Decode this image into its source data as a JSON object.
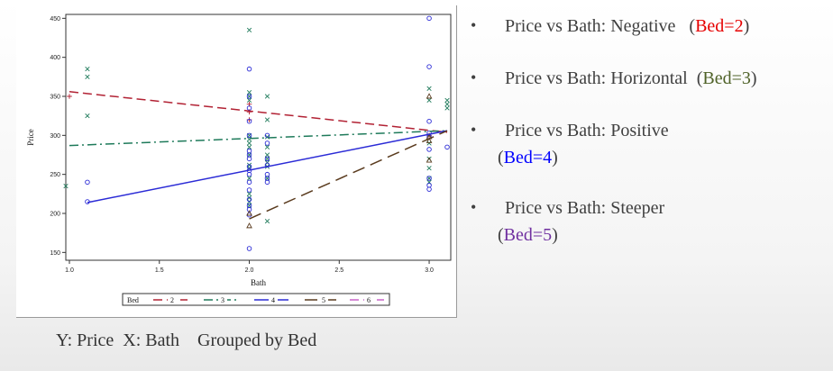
{
  "slide": {
    "caption": "Y: Price  X: Bath    Grouped by Bed",
    "bullets": [
      {
        "lead": "Price vs Bath: Negative",
        "open": "(",
        "group": "Bed=2",
        "close": ")"
      },
      {
        "lead": "Price vs Bath: Horizontal",
        "open": "(",
        "group": "Bed=3",
        "close": ")"
      },
      {
        "lead": "Price vs Bath: Positive",
        "open": "(",
        "group": "Bed=4",
        "close": ")"
      },
      {
        "lead": "Price vs Bath: Steeper",
        "open": "(",
        "group": "Bed=5",
        "close": ")"
      }
    ],
    "bullet_symbol": "•"
  },
  "chart_data": {
    "type": "scatter",
    "xlabel": "Bath",
    "ylabel": "Price",
    "xlim": [
      0.98,
      3.12
    ],
    "ylim": [
      140,
      455
    ],
    "xticks": [
      1.0,
      1.5,
      2.0,
      2.5,
      3.0
    ],
    "xtick_labels": [
      "1.0",
      "1.5",
      "2.0",
      "2.5",
      "3.0"
    ],
    "yticks": [
      150,
      200,
      250,
      300,
      350,
      400,
      450
    ],
    "ytick_labels": [
      "150",
      "200",
      "250",
      "300",
      "350",
      "400",
      "450"
    ],
    "grid": false,
    "legend": {
      "title": "Bed",
      "position": "bottom",
      "entries": [
        "2",
        "3",
        "4",
        "5",
        "6"
      ]
    },
    "series": [
      {
        "name": "2",
        "color": "#b22234",
        "dash": "10,5",
        "marker": "plus",
        "line": [
          [
            1.0,
            356
          ],
          [
            3.1,
            304
          ]
        ],
        "points": [
          [
            1.0,
            350
          ],
          [
            2.0,
            340
          ],
          [
            2.0,
            330
          ],
          [
            2.0,
            320
          ],
          [
            3.0,
            300
          ]
        ]
      },
      {
        "name": "3",
        "color": "#1e7a5a",
        "dash": "10,4,2,4",
        "marker": "x",
        "line": [
          [
            1.0,
            287
          ],
          [
            3.1,
            306
          ]
        ],
        "points": [
          [
            0.98,
            235
          ],
          [
            1.1,
            385
          ],
          [
            1.1,
            375
          ],
          [
            1.1,
            325
          ],
          [
            2.0,
            435
          ],
          [
            2.0,
            355
          ],
          [
            2.0,
            350
          ],
          [
            2.0,
            345
          ],
          [
            2.0,
            300
          ],
          [
            2.0,
            295
          ],
          [
            2.0,
            290
          ],
          [
            2.0,
            285
          ],
          [
            2.0,
            275
          ],
          [
            2.0,
            262
          ],
          [
            2.0,
            258
          ],
          [
            2.0,
            245
          ],
          [
            2.0,
            225
          ],
          [
            2.0,
            220
          ],
          [
            2.0,
            215
          ],
          [
            2.0,
            210
          ],
          [
            2.1,
            350
          ],
          [
            2.1,
            320
          ],
          [
            2.1,
            298
          ],
          [
            2.1,
            285
          ],
          [
            2.1,
            275
          ],
          [
            2.1,
            270
          ],
          [
            2.1,
            265
          ],
          [
            2.1,
            260
          ],
          [
            2.1,
            245
          ],
          [
            2.1,
            190
          ],
          [
            3.0,
            360
          ],
          [
            3.0,
            345
          ],
          [
            3.0,
            300
          ],
          [
            3.0,
            290
          ],
          [
            3.0,
            270
          ],
          [
            3.0,
            258
          ],
          [
            3.0,
            245
          ],
          [
            3.0,
            240
          ],
          [
            3.1,
            345
          ],
          [
            3.1,
            340
          ],
          [
            3.1,
            335
          ]
        ]
      },
      {
        "name": "4",
        "color": "#2b2bd6",
        "dash": "",
        "marker": "circle",
        "line": [
          [
            1.1,
            214
          ],
          [
            3.1,
            306
          ]
        ],
        "points": [
          [
            1.1,
            240
          ],
          [
            1.1,
            215
          ],
          [
            2.0,
            385
          ],
          [
            2.0,
            350
          ],
          [
            2.0,
            335
          ],
          [
            2.0,
            318
          ],
          [
            2.0,
            300
          ],
          [
            2.0,
            280
          ],
          [
            2.0,
            275
          ],
          [
            2.0,
            270
          ],
          [
            2.0,
            260
          ],
          [
            2.0,
            255
          ],
          [
            2.0,
            250
          ],
          [
            2.0,
            240
          ],
          [
            2.0,
            230
          ],
          [
            2.0,
            218
          ],
          [
            2.0,
            210
          ],
          [
            2.0,
            205
          ],
          [
            2.0,
            198
          ],
          [
            2.0,
            155
          ],
          [
            2.1,
            300
          ],
          [
            2.1,
            290
          ],
          [
            2.1,
            270
          ],
          [
            2.1,
            262
          ],
          [
            2.1,
            250
          ],
          [
            2.1,
            245
          ],
          [
            2.1,
            240
          ],
          [
            3.0,
            450
          ],
          [
            3.0,
            388
          ],
          [
            3.0,
            318
          ],
          [
            3.0,
            303
          ],
          [
            3.0,
            298
          ],
          [
            3.0,
            282
          ],
          [
            3.0,
            245
          ],
          [
            3.0,
            236
          ],
          [
            3.0,
            231
          ],
          [
            3.1,
            285
          ]
        ]
      },
      {
        "name": "5",
        "color": "#5a3b1e",
        "dash": "14,7",
        "marker": "triangle",
        "line": [
          [
            2.0,
            193
          ],
          [
            3.1,
            306
          ]
        ],
        "points": [
          [
            2.0,
            200
          ],
          [
            2.0,
            184
          ],
          [
            3.0,
            350
          ],
          [
            3.0,
            298
          ],
          [
            3.0,
            293
          ],
          [
            3.0,
            268
          ]
        ]
      },
      {
        "name": "6",
        "color": "#c964c9",
        "dash": "10,5",
        "marker": "none",
        "line": [],
        "points": []
      }
    ]
  }
}
